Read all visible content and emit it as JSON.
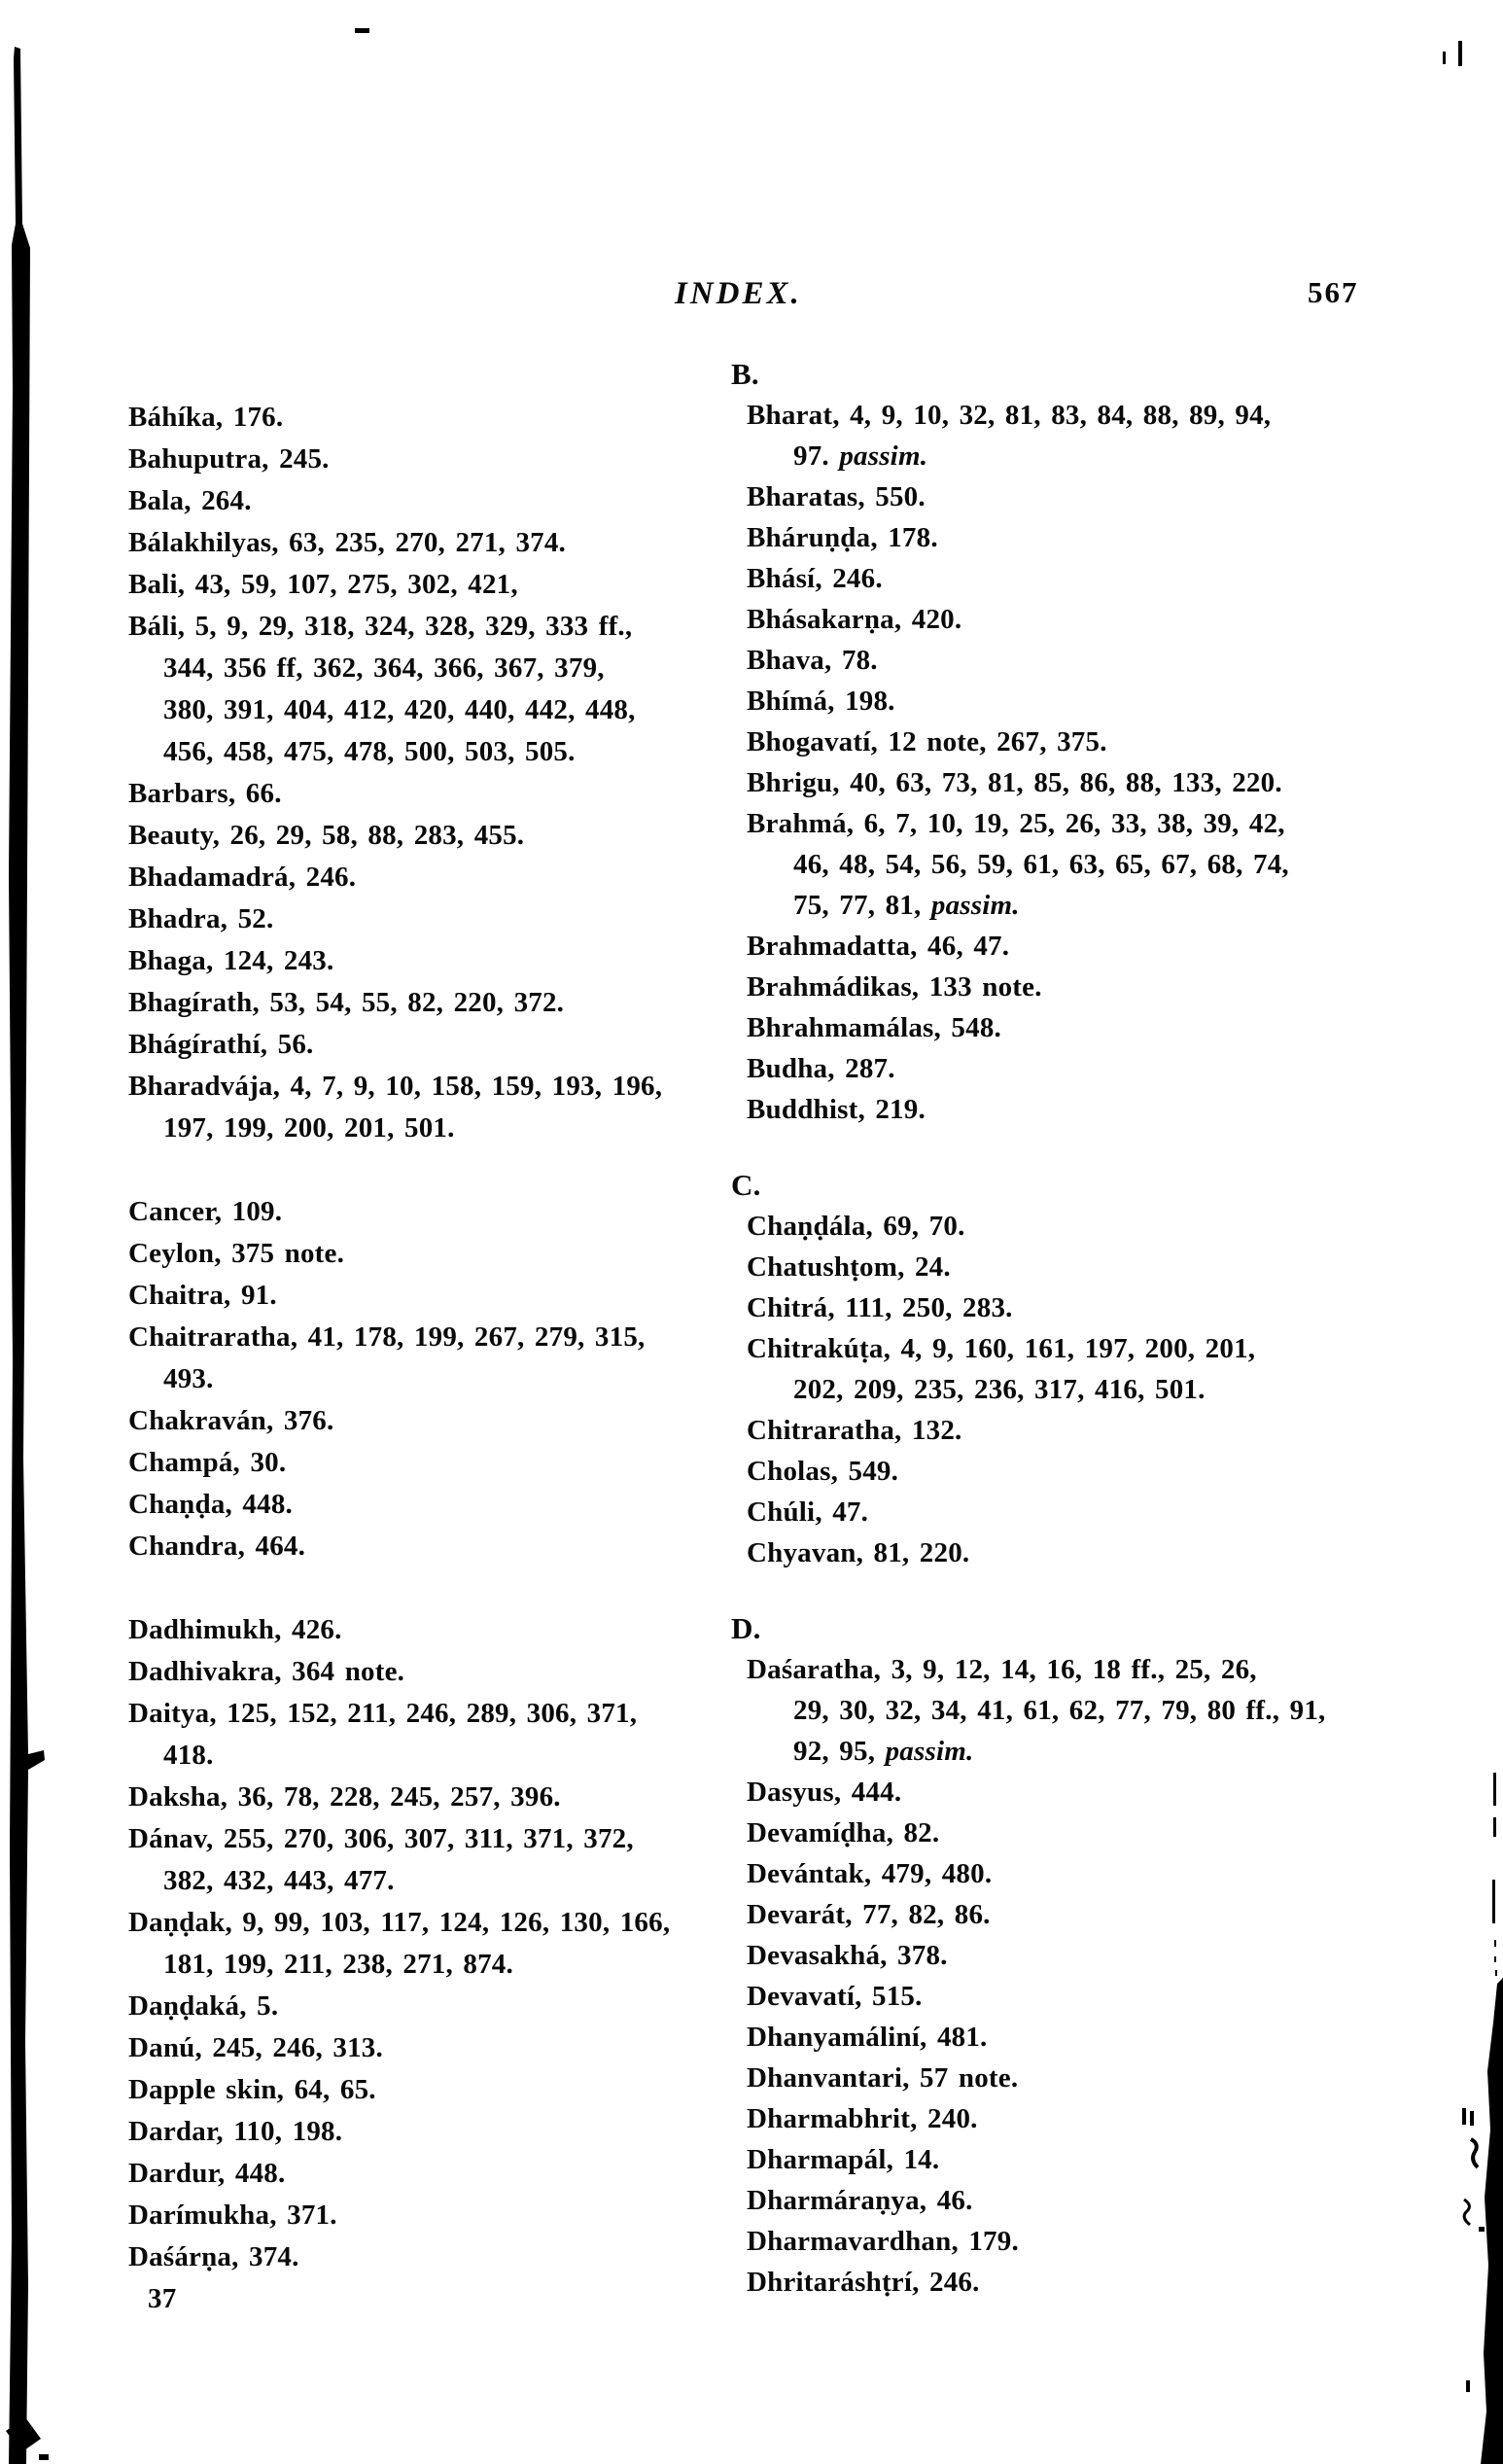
{
  "page": {
    "running_head": "INDEX.",
    "page_number": "567",
    "signature_mark": "37"
  },
  "columns": {
    "left": [
      {
        "type": "entry",
        "lines": [
          [
            "Báhíka, 176."
          ]
        ]
      },
      {
        "type": "entry",
        "lines": [
          [
            "Bahuputra, 245."
          ]
        ]
      },
      {
        "type": "entry",
        "lines": [
          [
            "Bala, 264."
          ]
        ]
      },
      {
        "type": "entry",
        "lines": [
          [
            "Bálakhilyas, 63, 235, 270, 271, 374."
          ]
        ]
      },
      {
        "type": "entry",
        "lines": [
          [
            "Bali, 43, 59, 107, 275, 302, 421,"
          ]
        ]
      },
      {
        "type": "entry",
        "lines": [
          [
            "Báli, 5, 9, 29, 318, 324, 328, 329, 333 ff.,"
          ],
          [
            "344, 356 ff, 362, 364, 366, 367, 379,"
          ],
          [
            "380, 391, 404, 412, 420, 440, 442, 448,"
          ],
          [
            "456, 458, 475, 478, 500, 503, 505."
          ]
        ]
      },
      {
        "type": "entry",
        "lines": [
          [
            "Barbars, 66."
          ]
        ]
      },
      {
        "type": "entry",
        "lines": [
          [
            "Beauty, 26, 29, 58, 88, 283, 455."
          ]
        ]
      },
      {
        "type": "entry",
        "lines": [
          [
            "Bhadamadrá, 246."
          ]
        ]
      },
      {
        "type": "entry",
        "lines": [
          [
            "Bhadra, 52."
          ]
        ]
      },
      {
        "type": "entry",
        "lines": [
          [
            "Bhaga, 124, 243."
          ]
        ]
      },
      {
        "type": "entry",
        "lines": [
          [
            "Bhagírath, 53, 54, 55, 82, 220, 372."
          ]
        ]
      },
      {
        "type": "entry",
        "lines": [
          [
            "Bhágírathí, 56."
          ]
        ]
      },
      {
        "type": "entry",
        "lines": [
          [
            "Bharadvája, 4, 7, 9, 10, 158, 159, 193, 196,"
          ],
          [
            "197, 199, 200, 201, 501."
          ]
        ]
      },
      {
        "type": "gap"
      },
      {
        "type": "entry",
        "lines": [
          [
            "Cancer, 109."
          ]
        ]
      },
      {
        "type": "entry",
        "lines": [
          [
            "Ceylon, 375 note."
          ]
        ]
      },
      {
        "type": "entry",
        "lines": [
          [
            "Chaitra, 91."
          ]
        ]
      },
      {
        "type": "entry",
        "lines": [
          [
            "Chaitraratha, 41, 178, 199, 267, 279, 315,"
          ],
          [
            "493."
          ]
        ]
      },
      {
        "type": "entry",
        "lines": [
          [
            "Chakraván, 376."
          ]
        ]
      },
      {
        "type": "entry",
        "lines": [
          [
            "Champá, 30."
          ]
        ]
      },
      {
        "type": "entry",
        "lines": [
          [
            "Chaṇḍa, 448."
          ]
        ]
      },
      {
        "type": "entry",
        "lines": [
          [
            "Chandra, 464."
          ]
        ]
      },
      {
        "type": "gap"
      },
      {
        "type": "entry",
        "lines": [
          [
            "Dadhimukh, 426."
          ]
        ]
      },
      {
        "type": "entry",
        "lines": [
          [
            "Dadhivakra, 364 note."
          ]
        ]
      },
      {
        "type": "entry",
        "lines": [
          [
            "Daitya, 125, 152, 211, 246, 289, 306, 371,"
          ],
          [
            "418."
          ]
        ]
      },
      {
        "type": "entry",
        "lines": [
          [
            "Daksha, 36, 78, 228, 245, 257, 396."
          ]
        ]
      },
      {
        "type": "entry",
        "lines": [
          [
            "Dánav, 255, 270, 306, 307, 311, 371, 372,"
          ],
          [
            "382, 432, 443, 477."
          ]
        ]
      },
      {
        "type": "entry",
        "lines": [
          [
            "Daṇḍak, 9, 99, 103, 117, 124, 126, 130, 166,"
          ],
          [
            "181, 199, 211, 238, 271, 874."
          ]
        ]
      },
      {
        "type": "entry",
        "lines": [
          [
            "Daṇḍaká, 5."
          ]
        ]
      },
      {
        "type": "entry",
        "lines": [
          [
            "Danú, 245, 246, 313."
          ]
        ]
      },
      {
        "type": "entry",
        "lines": [
          [
            "Dapple skin, 64, 65."
          ]
        ]
      },
      {
        "type": "entry",
        "lines": [
          [
            "Dardar, 110, 198."
          ]
        ]
      },
      {
        "type": "entry",
        "lines": [
          [
            "Dardur, 448."
          ]
        ]
      },
      {
        "type": "entry",
        "lines": [
          [
            "Darímukha, 371."
          ]
        ]
      },
      {
        "type": "entry",
        "lines": [
          [
            "Daśárṇa, 374."
          ]
        ]
      },
      {
        "type": "signature",
        "text": "37"
      }
    ],
    "right": [
      {
        "type": "header",
        "text": "B."
      },
      {
        "type": "entry",
        "lines": [
          [
            "Bharat, 4, 9, 10, 32, 81, 83, 84, 88, 89, 94,"
          ],
          [
            "97. ",
            {
              "t": "passim.",
              "i": true
            }
          ]
        ]
      },
      {
        "type": "entry",
        "lines": [
          [
            "Bharatas, 550."
          ]
        ]
      },
      {
        "type": "entry",
        "lines": [
          [
            "Bháruṇḍa, 178."
          ]
        ]
      },
      {
        "type": "entry",
        "lines": [
          [
            "Bhásí, 246."
          ]
        ]
      },
      {
        "type": "entry",
        "lines": [
          [
            "Bhásakarṇa, 420."
          ]
        ]
      },
      {
        "type": "entry",
        "lines": [
          [
            "Bhava, 78."
          ]
        ]
      },
      {
        "type": "entry",
        "lines": [
          [
            "Bhímá, 198."
          ]
        ]
      },
      {
        "type": "entry",
        "lines": [
          [
            "Bhogavatí, 12 note, 267, 375."
          ]
        ]
      },
      {
        "type": "entry",
        "lines": [
          [
            "Bhrigu, 40, 63, 73, 81, 85, 86, 88, 133, 220."
          ]
        ]
      },
      {
        "type": "entry",
        "lines": [
          [
            "Brahmá, 6, 7, 10, 19, 25, 26, 33, 38, 39, 42,"
          ],
          [
            "46, 48, 54, 56, 59, 61, 63, 65, 67, 68, 74,"
          ],
          [
            "75, 77, 81, ",
            {
              "t": "passim.",
              "i": true
            }
          ]
        ]
      },
      {
        "type": "entry",
        "lines": [
          [
            "Brahmadatta, 46, 47."
          ]
        ]
      },
      {
        "type": "entry",
        "lines": [
          [
            "Brahmádikas, 133 note."
          ]
        ]
      },
      {
        "type": "entry",
        "lines": [
          [
            "Bhrahmamálas, 548."
          ]
        ]
      },
      {
        "type": "entry",
        "lines": [
          [
            "Budha, 287."
          ]
        ]
      },
      {
        "type": "entry",
        "lines": [
          [
            "Buddhist, 219."
          ]
        ]
      },
      {
        "type": "gap"
      },
      {
        "type": "header",
        "text": "C."
      },
      {
        "type": "entry",
        "lines": [
          [
            "Chaṇḍála, 69, 70."
          ]
        ]
      },
      {
        "type": "entry",
        "lines": [
          [
            "Chatushṭom, 24."
          ]
        ]
      },
      {
        "type": "entry",
        "lines": [
          [
            "Chitrá, 111, 250, 283."
          ]
        ]
      },
      {
        "type": "entry",
        "lines": [
          [
            "Chitrakúṭa, 4, 9, 160, 161, 197, 200, 201,"
          ],
          [
            "202, 209, 235, 236, 317, 416, 501."
          ]
        ]
      },
      {
        "type": "entry",
        "lines": [
          [
            "Chitraratha, 132."
          ]
        ]
      },
      {
        "type": "entry",
        "lines": [
          [
            "Cholas, 549."
          ]
        ]
      },
      {
        "type": "entry",
        "lines": [
          [
            "Chúli, 47."
          ]
        ]
      },
      {
        "type": "entry",
        "lines": [
          [
            "Chyavan, 81, 220."
          ]
        ]
      },
      {
        "type": "gap"
      },
      {
        "type": "header",
        "text": "D."
      },
      {
        "type": "entry",
        "lines": [
          [
            "Daśaratha, 3, 9, 12, 14, 16, 18 ff., 25, 26,"
          ],
          [
            "29, 30, 32, 34, 41, 61, 62, 77, 79, 80 ff., 91,"
          ],
          [
            "92, 95, ",
            {
              "t": "passim.",
              "i": true
            }
          ]
        ]
      },
      {
        "type": "entry",
        "lines": [
          [
            "Dasyus, 444."
          ]
        ]
      },
      {
        "type": "entry",
        "lines": [
          [
            "Devamíḍha, 82."
          ]
        ]
      },
      {
        "type": "entry",
        "lines": [
          [
            "Devántak, 479, 480."
          ]
        ]
      },
      {
        "type": "entry",
        "lines": [
          [
            "Devarát, 77, 82, 86."
          ]
        ]
      },
      {
        "type": "entry",
        "lines": [
          [
            "Devasakhá, 378."
          ]
        ]
      },
      {
        "type": "entry",
        "lines": [
          [
            "Devavatí, 515."
          ]
        ]
      },
      {
        "type": "entry",
        "lines": [
          [
            "Dhanyamáliní, 481."
          ]
        ]
      },
      {
        "type": "entry",
        "lines": [
          [
            "Dhanvantari, 57 note."
          ]
        ]
      },
      {
        "type": "entry",
        "lines": [
          [
            "Dharmabhrit, 240."
          ]
        ]
      },
      {
        "type": "entry",
        "lines": [
          [
            "Dharmapál, 14."
          ]
        ]
      },
      {
        "type": "entry",
        "lines": [
          [
            "Dharmáraṇya, 46."
          ]
        ]
      },
      {
        "type": "entry",
        "lines": [
          [
            "Dharmavardhan, 179."
          ]
        ]
      },
      {
        "type": "entry",
        "lines": [
          [
            "Dhritaráshṭrí, 246."
          ]
        ]
      }
    ]
  }
}
